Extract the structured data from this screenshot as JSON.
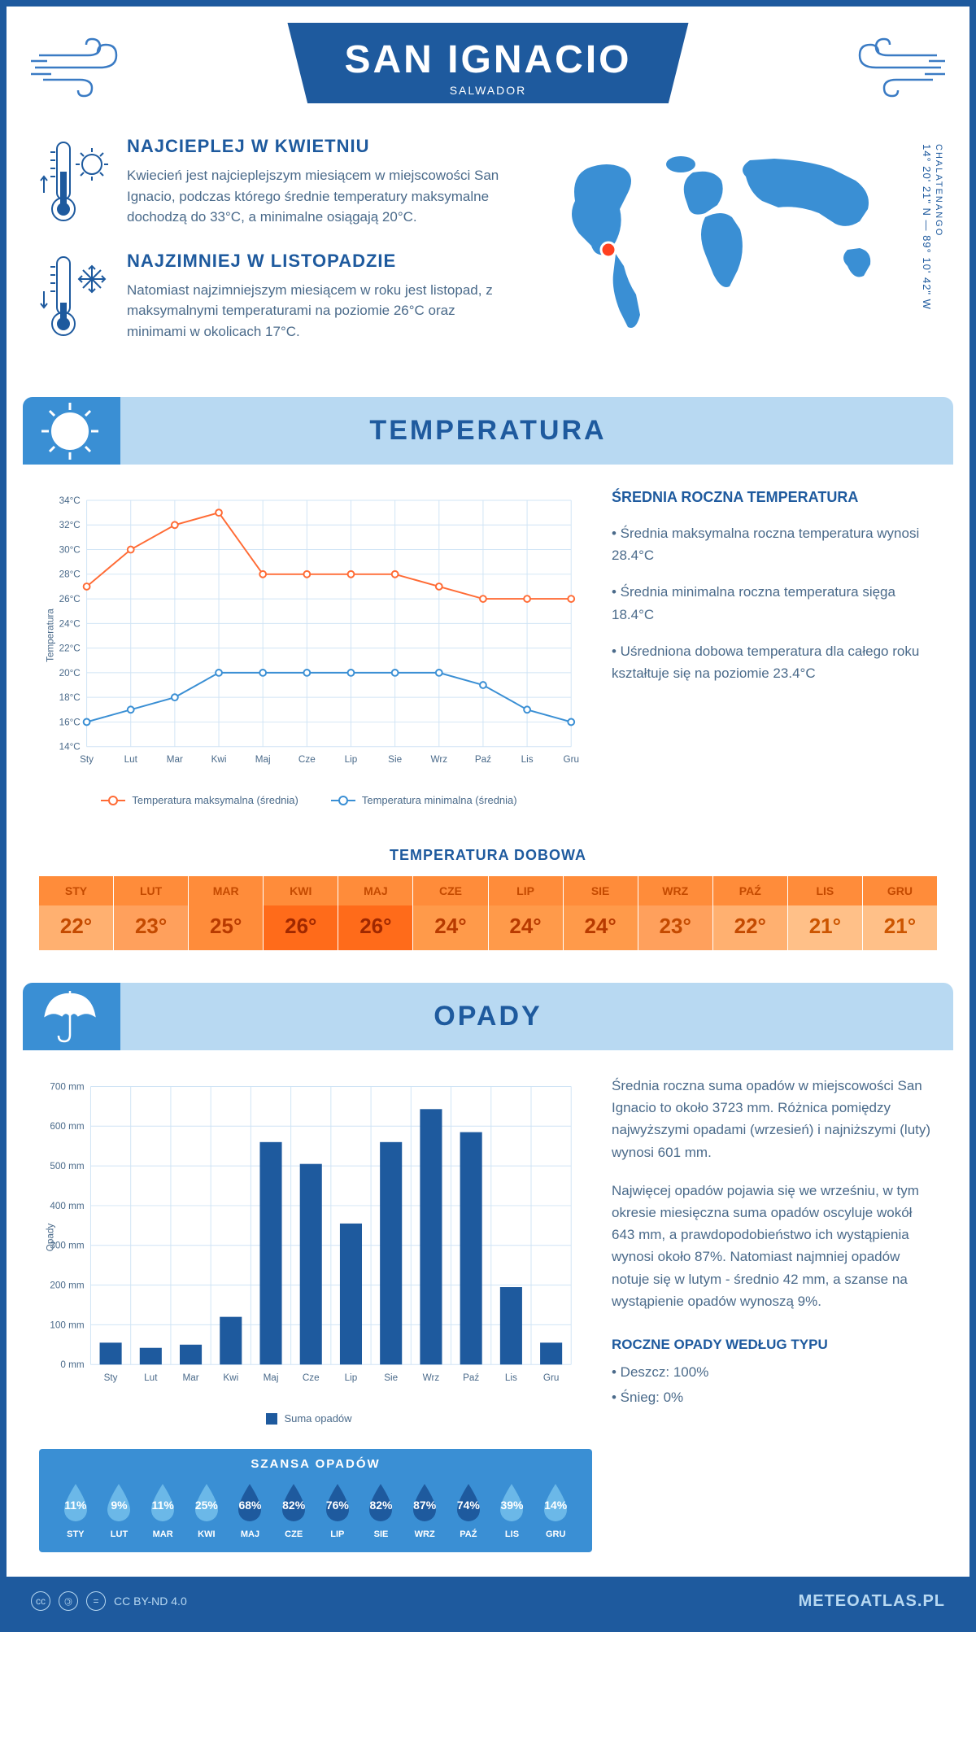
{
  "header": {
    "city": "SAN IGNACIO",
    "country": "SALWADOR"
  },
  "coords": {
    "region": "CHALATENANGO",
    "lat": "14° 20' 21\" N",
    "lon": "89° 10' 42\" W"
  },
  "intro": {
    "warm": {
      "title": "NAJCIEPLEJ W KWIETNIU",
      "text": "Kwiecień jest najcieplejszym miesiącem w miejscowości San Ignacio, podczas którego średnie temperatury maksymalne dochodzą do 33°C, a minimalne osiągają 20°C."
    },
    "cold": {
      "title": "NAJZIMNIEJ W LISTOPADZIE",
      "text": "Natomiast najzimniejszym miesiącem w roku jest listopad, z maksymalnymi temperaturami na poziomie 26°C oraz minimami w okolicach 17°C."
    }
  },
  "temperature": {
    "section_title": "TEMPERATURA",
    "info_title": "ŚREDNIA ROCZNA TEMPERATURA",
    "bullets": [
      "• Średnia maksymalna roczna temperatura wynosi 28.4°C",
      "• Średnia minimalna roczna temperatura sięga 18.4°C",
      "• Uśredniona dobowa temperatura dla całego roku kształtuje się na poziomie 23.4°C"
    ],
    "chart": {
      "months": [
        "Sty",
        "Lut",
        "Mar",
        "Kwi",
        "Maj",
        "Cze",
        "Lip",
        "Sie",
        "Wrz",
        "Paź",
        "Lis",
        "Gru"
      ],
      "max": [
        27,
        30,
        32,
        33,
        28,
        28,
        28,
        28,
        27,
        26,
        26,
        26
      ],
      "min": [
        16,
        17,
        18,
        20,
        20,
        20,
        20,
        20,
        20,
        19,
        17,
        16
      ],
      "ylim": [
        14,
        34
      ],
      "ytick_step": 2,
      "max_color": "#ff6b35",
      "min_color": "#3a8fd4",
      "grid_color": "#d0e4f5",
      "ylabel": "Temperatura",
      "legend_max": "Temperatura maksymalna (średnia)",
      "legend_min": "Temperatura minimalna (średnia)"
    },
    "daily": {
      "title": "TEMPERATURA DOBOWA",
      "months": [
        "STY",
        "LUT",
        "MAR",
        "KWI",
        "MAJ",
        "CZE",
        "LIP",
        "SIE",
        "WRZ",
        "PAŹ",
        "LIS",
        "GRU"
      ],
      "values": [
        "22°",
        "23°",
        "25°",
        "26°",
        "26°",
        "24°",
        "24°",
        "24°",
        "23°",
        "22°",
        "21°",
        "21°"
      ],
      "colors_bg": [
        "#ffb070",
        "#ffa05c",
        "#ff8c3a",
        "#ff6b1a",
        "#ff6b1a",
        "#ff9a4a",
        "#ff9a4a",
        "#ff9a4a",
        "#ffa05c",
        "#ffb070",
        "#ffc088",
        "#ffc088"
      ],
      "colors_txt": [
        "#c44a00",
        "#c44a00",
        "#b83a00",
        "#a02800",
        "#a02800",
        "#b83a00",
        "#b83a00",
        "#b83a00",
        "#c44a00",
        "#c44a00",
        "#cc5500",
        "#cc5500"
      ],
      "header_bg": "#ff8c3a",
      "header_txt": "#c44a00"
    }
  },
  "precipitation": {
    "section_title": "OPADY",
    "para1": "Średnia roczna suma opadów w miejscowości San Ignacio to około 3723 mm. Różnica pomiędzy najwyższymi opadami (wrzesień) i najniższymi (luty) wynosi 601 mm.",
    "para2": "Najwięcej opadów pojawia się we wrześniu, w tym okresie miesięczna suma opadów oscyluje wokół 643 mm, a prawdopodobieństwo ich wystąpienia wynosi około 87%. Natomiast najmniej opadów notuje się w lutym - średnio 42 mm, a szanse na wystąpienie opadów wynoszą 9%.",
    "type_title": "ROCZNE OPADY WEDŁUG TYPU",
    "type_rain": "• Deszcz: 100%",
    "type_snow": "• Śnieg: 0%",
    "chart": {
      "months": [
        "Sty",
        "Lut",
        "Mar",
        "Kwi",
        "Maj",
        "Cze",
        "Lip",
        "Sie",
        "Wrz",
        "Paź",
        "Lis",
        "Gru"
      ],
      "values": [
        55,
        42,
        50,
        120,
        560,
        505,
        355,
        560,
        643,
        585,
        195,
        55
      ],
      "ylim": [
        0,
        700
      ],
      "ytick_step": 100,
      "bar_color": "#1e5a9e",
      "grid_color": "#d0e4f5",
      "ylabel": "Opady",
      "legend": "Suma opadów"
    },
    "chance": {
      "title": "SZANSA OPADÓW",
      "months": [
        "STY",
        "LUT",
        "MAR",
        "KWI",
        "MAJ",
        "CZE",
        "LIP",
        "SIE",
        "WRZ",
        "PAŹ",
        "LIS",
        "GRU"
      ],
      "percents": [
        "11%",
        "9%",
        "11%",
        "25%",
        "68%",
        "82%",
        "76%",
        "82%",
        "87%",
        "74%",
        "39%",
        "14%"
      ],
      "values": [
        11,
        9,
        11,
        25,
        68,
        82,
        76,
        82,
        87,
        74,
        39,
        14
      ],
      "drop_light": "#6bb8e8",
      "drop_dark": "#1e5a9e"
    }
  },
  "footer": {
    "license": "CC BY-ND 4.0",
    "site": "METEOATLAS.PL"
  }
}
